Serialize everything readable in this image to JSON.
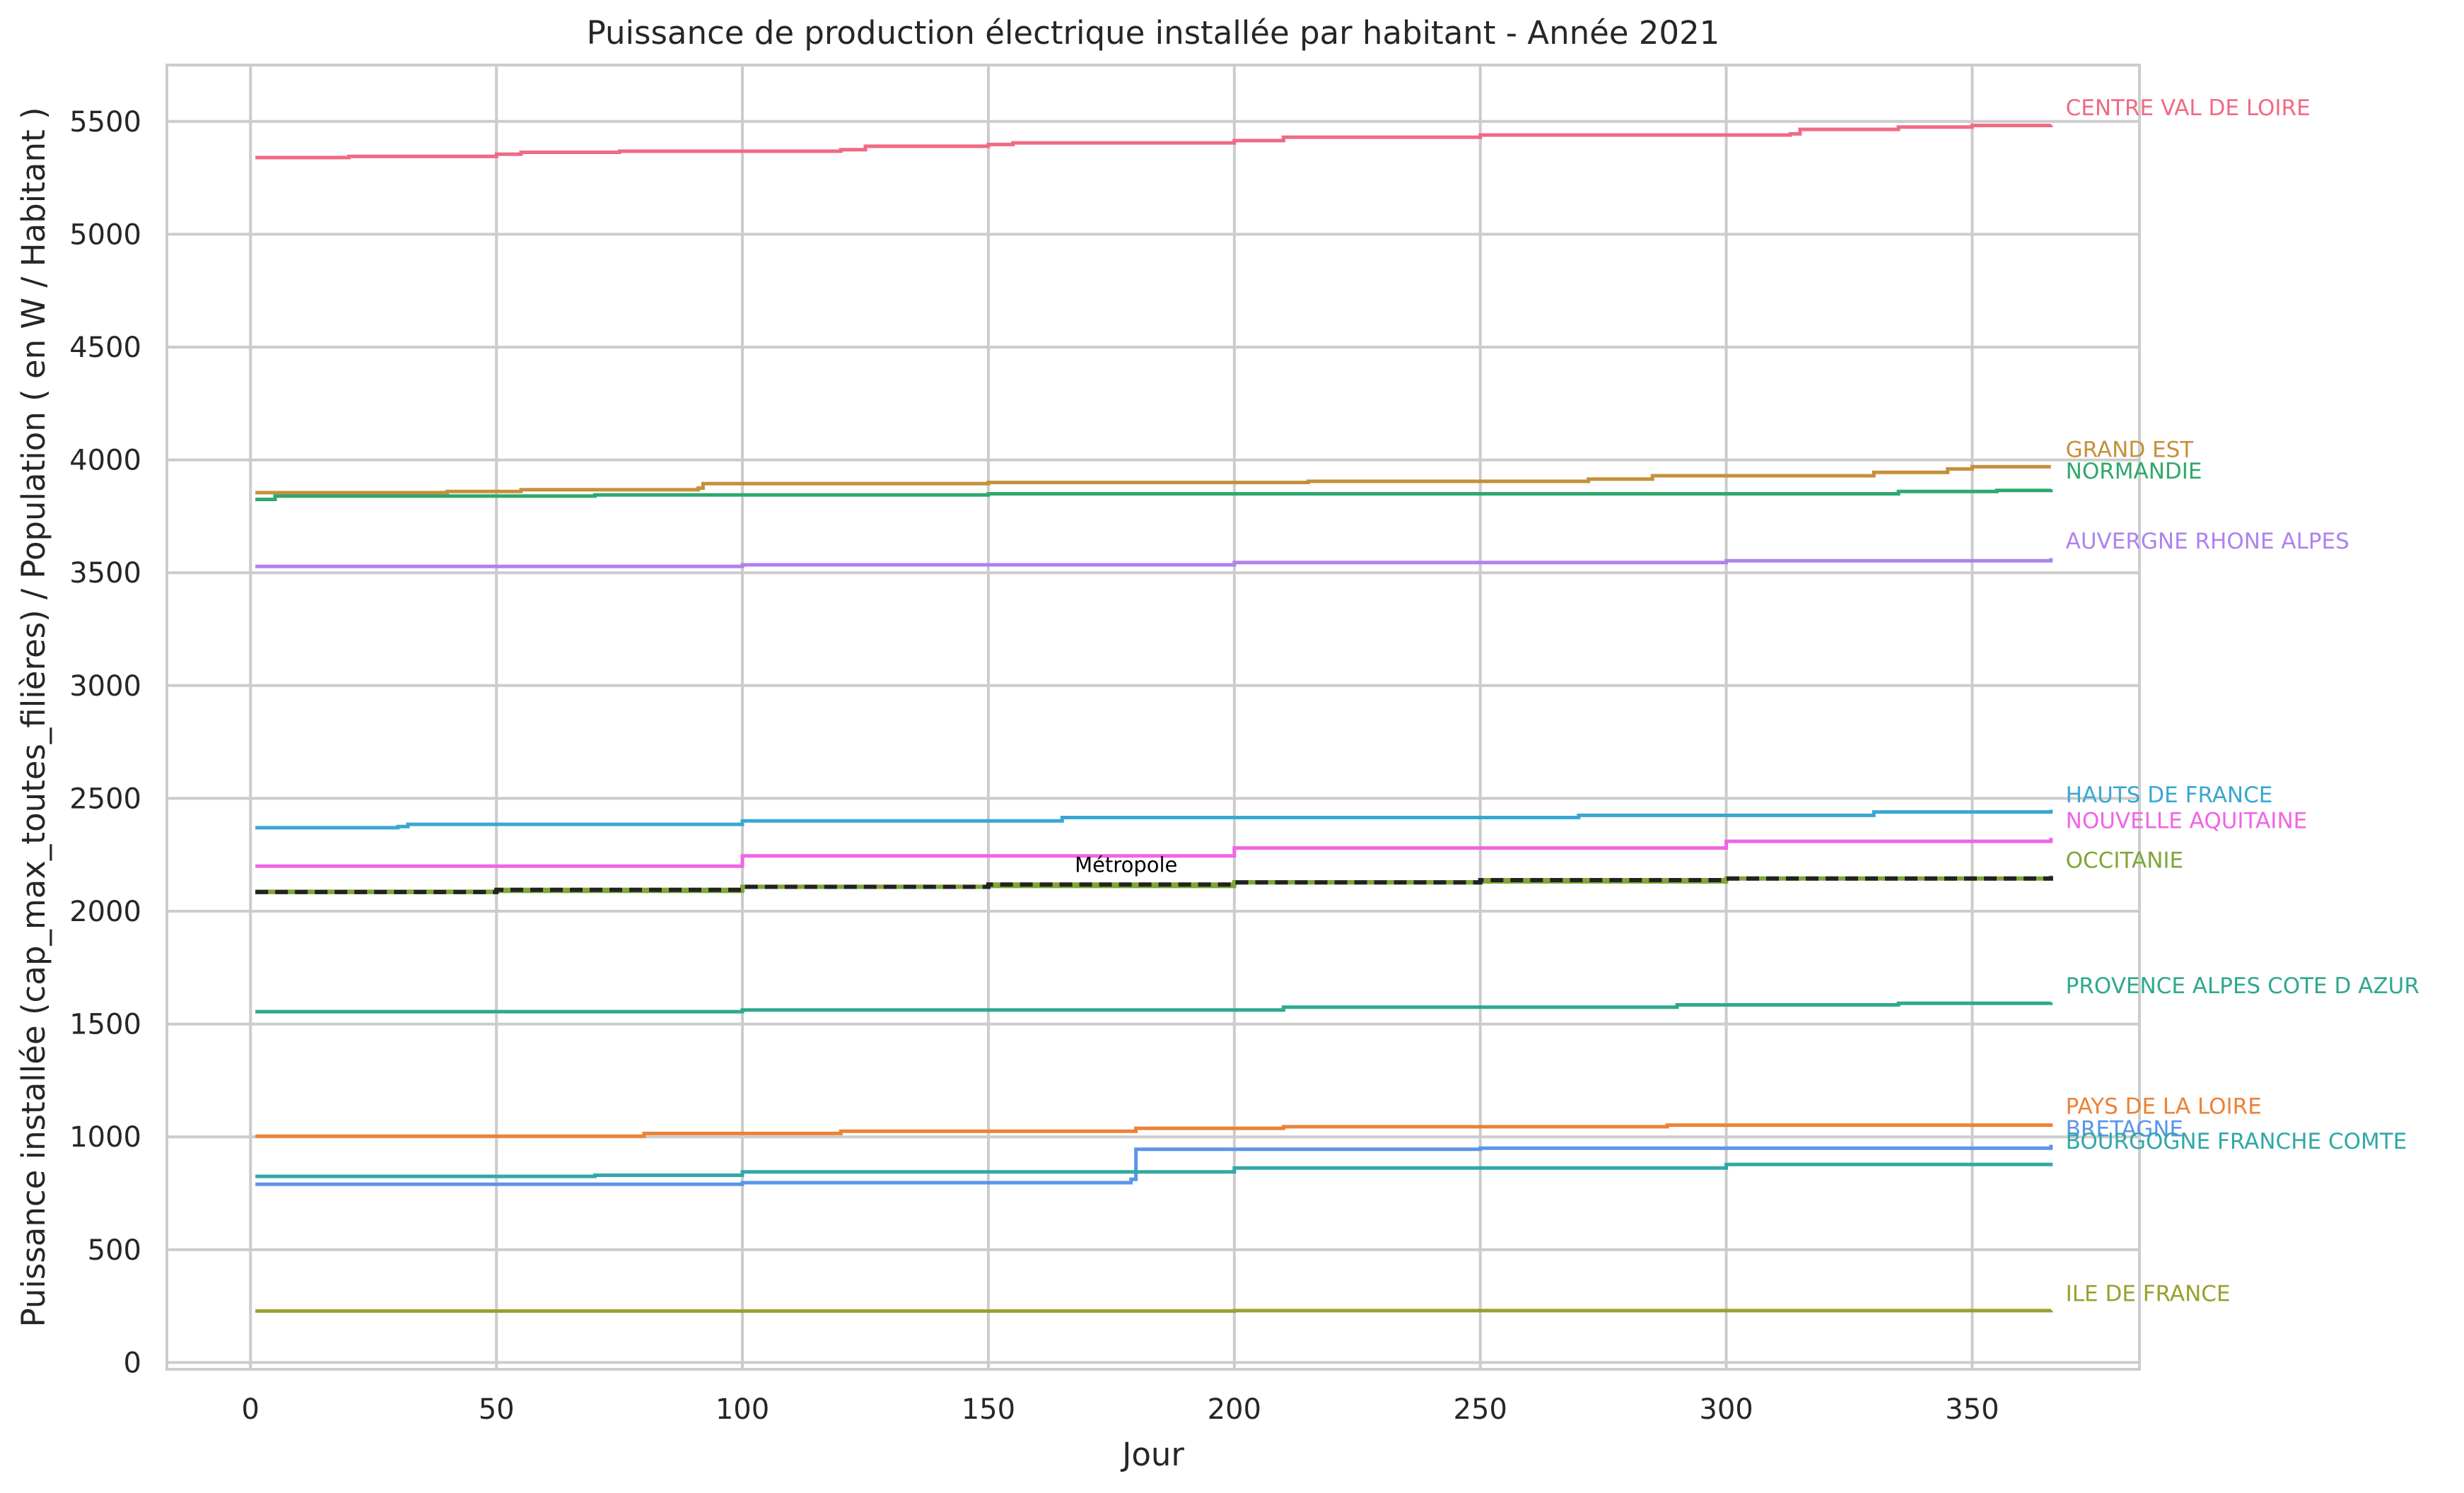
{
  "chart_data": {
    "type": "line",
    "title": "Puissance de production électrique installée par habitant - Année 2021",
    "xlabel": "Jour",
    "ylabel": "Puissance installée (cap_max_toutes_filières) / Population ( en  W / Habitant )",
    "xlim": [
      -17,
      384
    ],
    "ylim": [
      -30,
      5750
    ],
    "xticks": [
      0,
      50,
      100,
      150,
      200,
      250,
      300,
      350
    ],
    "yticks": [
      0,
      500,
      1000,
      1500,
      2000,
      2500,
      3000,
      3500,
      4000,
      4500,
      5000,
      5500
    ],
    "grid": true,
    "legend": "labels at line ends (right)",
    "series": [
      {
        "name": "CENTRE VAL DE LOIRE",
        "color": "#f06a83",
        "points": [
          [
            1,
            5340
          ],
          [
            20,
            5345
          ],
          [
            50,
            5355
          ],
          [
            55,
            5363
          ],
          [
            75,
            5368
          ],
          [
            120,
            5375
          ],
          [
            125,
            5390
          ],
          [
            150,
            5398
          ],
          [
            155,
            5405
          ],
          [
            200,
            5415
          ],
          [
            210,
            5430
          ],
          [
            250,
            5440
          ],
          [
            313,
            5445
          ],
          [
            315,
            5465
          ],
          [
            335,
            5475
          ],
          [
            350,
            5482
          ],
          [
            366,
            5485
          ]
        ]
      },
      {
        "name": "GRAND EST",
        "color": "#c5903a",
        "points": [
          [
            1,
            3855
          ],
          [
            40,
            3860
          ],
          [
            55,
            3868
          ],
          [
            91,
            3875
          ],
          [
            92,
            3895
          ],
          [
            150,
            3900
          ],
          [
            215,
            3905
          ],
          [
            272,
            3915
          ],
          [
            285,
            3930
          ],
          [
            330,
            3945
          ],
          [
            345,
            3960
          ],
          [
            350,
            3970
          ],
          [
            366,
            3970
          ]
        ]
      },
      {
        "name": "NORMANDIE",
        "color": "#2fa86d",
        "points": [
          [
            1,
            3825
          ],
          [
            5,
            3840
          ],
          [
            70,
            3845
          ],
          [
            150,
            3850
          ],
          [
            335,
            3860
          ],
          [
            355,
            3865
          ],
          [
            366,
            3870
          ]
        ]
      },
      {
        "name": "AUVERGNE RHONE ALPES",
        "color": "#ae82ef",
        "points": [
          [
            1,
            3528
          ],
          [
            100,
            3535
          ],
          [
            200,
            3545
          ],
          [
            300,
            3553
          ],
          [
            366,
            3565
          ]
        ]
      },
      {
        "name": "HAUTS DE FRANCE",
        "color": "#3aa7d2",
        "points": [
          [
            1,
            2370
          ],
          [
            30,
            2375
          ],
          [
            32,
            2385
          ],
          [
            100,
            2400
          ],
          [
            165,
            2415
          ],
          [
            270,
            2425
          ],
          [
            330,
            2440
          ],
          [
            366,
            2450
          ]
        ]
      },
      {
        "name": "NOUVELLE AQUITAINE",
        "color": "#f064e6",
        "points": [
          [
            1,
            2200
          ],
          [
            100,
            2245
          ],
          [
            200,
            2280
          ],
          [
            300,
            2310
          ],
          [
            366,
            2325
          ]
        ]
      },
      {
        "name": "OCCITANIE",
        "color": "#7fa638",
        "points": [
          [
            1,
            2088
          ],
          [
            100,
            2110
          ],
          [
            200,
            2130
          ],
          [
            300,
            2145
          ],
          [
            366,
            2158
          ]
        ]
      },
      {
        "name": "PROVENCE ALPES COTE D AZUR",
        "color": "#2fa88e",
        "points": [
          [
            1,
            1555
          ],
          [
            100,
            1562
          ],
          [
            210,
            1575
          ],
          [
            290,
            1585
          ],
          [
            335,
            1592
          ],
          [
            366,
            1595
          ]
        ]
      },
      {
        "name": "PAYS DE LA LOIRE",
        "color": "#ec8235",
        "points": [
          [
            1,
            1003
          ],
          [
            80,
            1015
          ],
          [
            120,
            1025
          ],
          [
            180,
            1038
          ],
          [
            210,
            1045
          ],
          [
            288,
            1052
          ],
          [
            366,
            1060
          ]
        ]
      },
      {
        "name": "BRETAGNE",
        "color": "#5b95ea",
        "points": [
          [
            1,
            790
          ],
          [
            100,
            797
          ],
          [
            179,
            812
          ],
          [
            180,
            945
          ],
          [
            250,
            950
          ],
          [
            366,
            965
          ]
        ]
      },
      {
        "name": "BOURGOGNE FRANCHE COMTE",
        "color": "#31a8a8",
        "points": [
          [
            1,
            825
          ],
          [
            70,
            830
          ],
          [
            100,
            845
          ],
          [
            200,
            862
          ],
          [
            300,
            878
          ],
          [
            366,
            885
          ]
        ]
      },
      {
        "name": "ILE DE FRANCE",
        "color": "#99a02c",
        "points": [
          [
            1,
            228
          ],
          [
            200,
            230
          ],
          [
            366,
            232
          ]
        ]
      },
      {
        "name": "Métropole",
        "color": "#222222",
        "dashed": true,
        "points": [
          [
            1,
            2085
          ],
          [
            50,
            2095
          ],
          [
            100,
            2108
          ],
          [
            150,
            2118
          ],
          [
            200,
            2128
          ],
          [
            250,
            2138
          ],
          [
            300,
            2145
          ],
          [
            366,
            2155
          ]
        ]
      }
    ],
    "end_labels": [
      {
        "text": "CENTRE VAL DE LOIRE",
        "color": "#f06a83",
        "y": 5565
      },
      {
        "text": "GRAND EST",
        "color": "#c5903a",
        "y": 4050
      },
      {
        "text": "NORMANDIE",
        "color": "#2fa86d",
        "y": 3955
      },
      {
        "text": "AUVERGNE RHONE ALPES",
        "color": "#ae82ef",
        "y": 3645
      },
      {
        "text": "HAUTS DE FRANCE",
        "color": "#3aa7d2",
        "y": 2520
      },
      {
        "text": "NOUVELLE AQUITAINE",
        "color": "#f064e6",
        "y": 2405
      },
      {
        "text": "OCCITANIE",
        "color": "#7fa638",
        "y": 2230
      },
      {
        "text": "PROVENCE ALPES COTE D AZUR",
        "color": "#2fa88e",
        "y": 1675
      },
      {
        "text": "PAYS DE LA LOIRE",
        "color": "#ec8235",
        "y": 1140
      },
      {
        "text": "BRETAGNE",
        "color": "#5b95ea",
        "y": 1040
      },
      {
        "text": "BOURGOGNE FRANCHE COMTE",
        "color": "#31a8a8",
        "y": 985
      },
      {
        "text": "ILE DE FRANCE",
        "color": "#99a02c",
        "y": 310
      }
    ],
    "annotations": [
      {
        "text": "Métropole",
        "x": 178,
        "y": 2205,
        "color": "#000000"
      }
    ]
  }
}
